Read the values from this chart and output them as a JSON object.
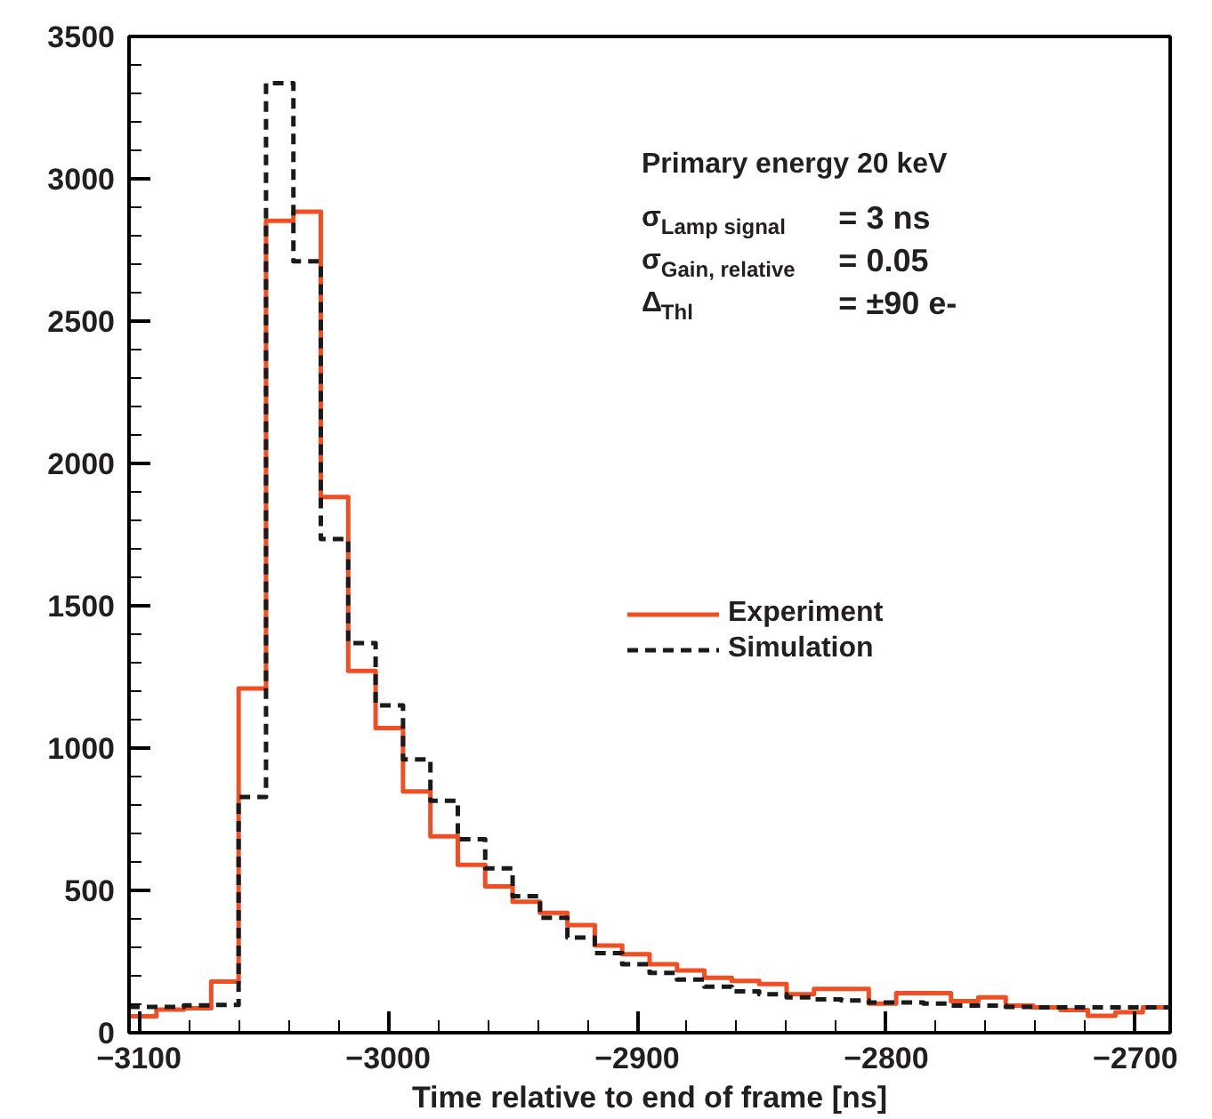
{
  "chart_data": {
    "type": "histogram",
    "xlabel": "Time relative to end of frame [ns]",
    "bins": [
      -3104,
      -3093,
      -3082,
      -3071,
      -3060,
      -3049,
      -3038,
      -3027,
      -3016,
      -3005,
      -2994,
      -2983,
      -2972,
      -2961,
      -2950,
      -2939,
      -2928,
      -2917,
      -2906,
      -2895,
      -2884,
      -2873,
      -2862,
      -2851,
      -2840,
      -2829,
      -2818,
      -2807,
      -2796,
      -2785,
      -2774,
      -2763,
      -2752,
      -2741,
      -2730,
      -2719,
      -2708,
      -2697,
      -2686
    ],
    "series": [
      {
        "name": "Experiment",
        "color": "#f04e23",
        "line_style": "solid",
        "values": [
          58,
          81,
          86,
          180,
          1209,
          2852,
          2884,
          1882,
          1271,
          1070,
          848,
          690,
          590,
          514,
          460,
          421,
          378,
          306,
          276,
          241,
          219,
          193,
          182,
          171,
          135,
          154,
          154,
          102,
          139,
          139,
          111,
          124,
          95,
          89,
          80,
          59,
          72,
          89
        ]
      },
      {
        "name": "Simulation",
        "color": "#1a1a1a",
        "line_style": "dashed",
        "values": [
          91,
          91,
          96,
          98,
          828,
          3336,
          2710,
          1734,
          1369,
          1150,
          960,
          815,
          680,
          577,
          480,
          404,
          334,
          280,
          241,
          210,
          187,
          162,
          145,
          135,
          124,
          117,
          113,
          106,
          106,
          102,
          95,
          95,
          91,
          89,
          89,
          89,
          89,
          89
        ]
      }
    ],
    "annotations": [
      "Primary energy 20 keV",
      "σ$_{Lamp signal}$ = 3 ns",
      "σ$_{Gain, relative}$ = 0.05",
      "Δ$_{Thl}$ = ±90 e-"
    ],
    "xlim": [
      -3104,
      -2686
    ],
    "xticks": [
      -3100,
      -3000,
      -2900,
      -2800,
      -2700
    ],
    "ylim": [
      0,
      3500
    ],
    "yticks": [
      0,
      500,
      1000,
      1500,
      2000,
      2500,
      3000,
      3500
    ],
    "grid": false,
    "legend": "right"
  }
}
